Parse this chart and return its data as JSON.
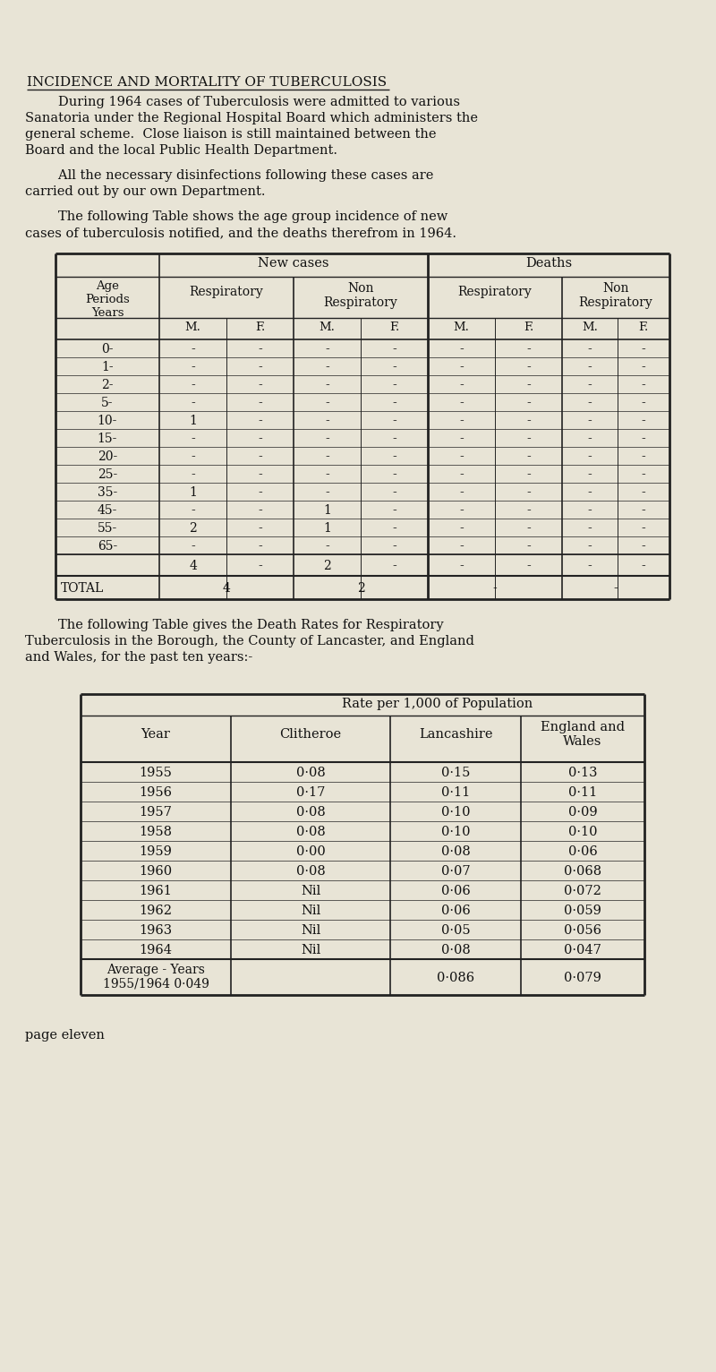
{
  "bg_color": "#e8e4d6",
  "text_color": "#1a1a1a",
  "title": "INCIDENCE AND MORTALITY OF TUBERCULOSIS",
  "para1_lines": [
    "        During 1964 cases of Tuberculosis were admitted to various",
    "Sanatoria under the Regional Hospital Board which administers the",
    "general scheme.  Close liaison is still maintained between the",
    "Board and the local Public Health Department."
  ],
  "para2_lines": [
    "        All the necessary disinfections following these cases are",
    "carried out by our own Department."
  ],
  "para3_lines": [
    "        The following Table shows the age group incidence of new",
    "cases of tuberculosis notified, and the deaths therefrom in 1964."
  ],
  "table1_ages": [
    "0-",
    "1-",
    "2-",
    "5-",
    "10-",
    "15-",
    "20-",
    "25-",
    "35-",
    "45-",
    "55-",
    "65-"
  ],
  "table1_data": [
    [
      "-",
      "-",
      "-",
      "-",
      "-",
      "-",
      "-",
      "-"
    ],
    [
      "-",
      "-",
      "-",
      "-",
      "-",
      "-",
      "-",
      "-"
    ],
    [
      "-",
      "-",
      "-",
      "-",
      "-",
      "-",
      "-",
      "-"
    ],
    [
      "-",
      "-",
      "-",
      "-",
      "-",
      "-",
      "-",
      "-"
    ],
    [
      "1",
      "-",
      "-",
      "-",
      "-",
      "-",
      "-",
      "-"
    ],
    [
      "-",
      "-",
      "-",
      "-",
      "-",
      "-",
      "-",
      "-"
    ],
    [
      "-",
      "-",
      "-",
      "-",
      "-",
      "-",
      "-",
      "-"
    ],
    [
      "-",
      "-",
      "-",
      "-",
      "-",
      "-",
      "-",
      "-"
    ],
    [
      "1",
      "-",
      "-",
      "-",
      "-",
      "-",
      "-",
      "-"
    ],
    [
      "-",
      "-",
      "1",
      "-",
      "-",
      "-",
      "-",
      "-"
    ],
    [
      "2",
      "-",
      "1",
      "-",
      "-",
      "-",
      "-",
      "-"
    ],
    [
      "-",
      "-",
      "-",
      "-",
      "-",
      "-",
      "-",
      "-"
    ]
  ],
  "table1_subtotal": [
    "4",
    "-",
    "2",
    "-",
    "-",
    "-",
    "-",
    "-"
  ],
  "para4_lines": [
    "        The following Table gives the Death Rates for Respiratory",
    "Tuberculosis in the Borough, the County of Lancaster, and England",
    "and Wales, for the past ten years:-"
  ],
  "table2_years": [
    "1955",
    "1956",
    "1957",
    "1958",
    "1959",
    "1960",
    "1961",
    "1962",
    "1963",
    "1964"
  ],
  "table2_clitheroe": [
    "0·08",
    "0·17",
    "0·08",
    "0·08",
    "0·00",
    "0·08",
    "Nil",
    "Nil",
    "Nil",
    "Nil"
  ],
  "table2_lancashire": [
    "0·15",
    "0·11",
    "0·10",
    "0·10",
    "0·08",
    "0·07",
    "0·06",
    "0·06",
    "0·05",
    "0·08"
  ],
  "table2_england": [
    "0·13",
    "0·11",
    "0·09",
    "0·10",
    "0·06",
    "0·068",
    "0·072",
    "0·059",
    "0·056",
    "0·047"
  ],
  "table2_avg_label1": "Average - Years",
  "table2_avg_label2": "1955/1964 0·049",
  "table2_avg_lancashire": "0·086",
  "table2_avg_england": "0·079",
  "footer": "page eleven"
}
